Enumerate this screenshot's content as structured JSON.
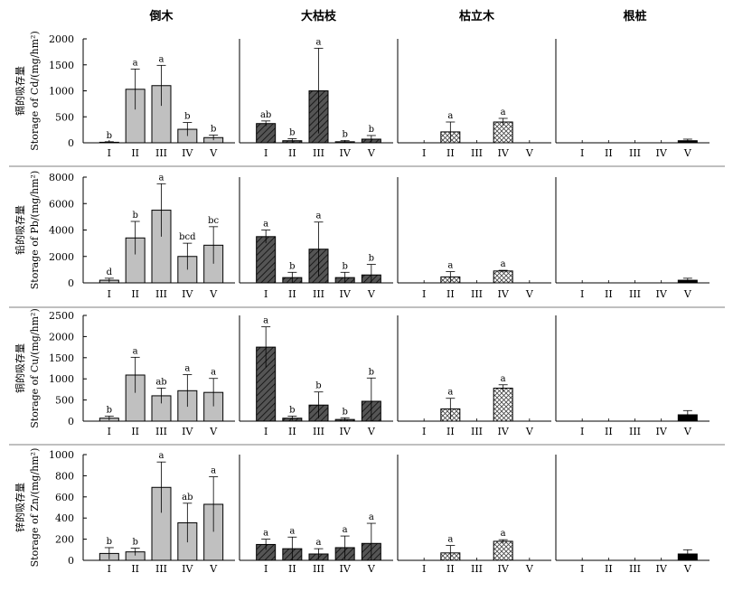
{
  "chart_data": {
    "type": "bar",
    "groups": [
      "倒木",
      "大枯枝",
      "枯立木",
      "根桩"
    ],
    "categories": [
      "I",
      "II",
      "III",
      "IV",
      "V"
    ],
    "panels": [
      {
        "ylabel_cn": "镉的吸存量",
        "ylabel_en": "Storage of Cd/(mg/hm²)",
        "ylim": [
          0,
          2000
        ],
        "yticks": [
          "0",
          "500",
          "1000",
          "1500",
          "2000"
        ],
        "series": [
          {
            "group": "倒木",
            "values": [
              10,
              1030,
              1100,
              260,
              100
            ],
            "errors": [
              10,
              390,
              390,
              130,
              50
            ],
            "labels": [
              "b",
              "a",
              "a",
              "b",
              "b"
            ]
          },
          {
            "group": "大枯枝",
            "values": [
              370,
              40,
              1000,
              20,
              70
            ],
            "errors": [
              50,
              40,
              820,
              20,
              70
            ],
            "labels": [
              "ab",
              "b",
              "a",
              "b",
              "b"
            ]
          },
          {
            "group": "枯立木",
            "values": [
              null,
              210,
              null,
              400,
              null
            ],
            "errors": [
              null,
              190,
              null,
              70,
              null
            ],
            "labels": [
              "",
              "a",
              "",
              "a",
              ""
            ]
          },
          {
            "group": "根桩",
            "values": [
              null,
              null,
              null,
              null,
              40
            ],
            "errors": [
              null,
              null,
              null,
              null,
              30
            ],
            "labels": [
              "",
              "",
              "",
              "",
              ""
            ]
          }
        ]
      },
      {
        "ylabel_cn": "铅的吸存量",
        "ylabel_en": "Storage of Pb/(mg/hm²)",
        "ylim": [
          0,
          8000
        ],
        "yticks": [
          "0",
          "2000",
          "4000",
          "6000",
          "8000"
        ],
        "series": [
          {
            "group": "倒木",
            "values": [
              200,
              3400,
              5500,
              2000,
              2850
            ],
            "errors": [
              150,
              1250,
              2000,
              1000,
              1400
            ],
            "labels": [
              "d",
              "b",
              "a",
              "bcd",
              "bc"
            ]
          },
          {
            "group": "大枯枝",
            "values": [
              3500,
              400,
              2550,
              400,
              600
            ],
            "errors": [
              500,
              400,
              2050,
              400,
              800
            ],
            "labels": [
              "a",
              "b",
              "a",
              "b",
              "b"
            ]
          },
          {
            "group": "枯立木",
            "values": [
              null,
              450,
              null,
              900,
              null
            ],
            "errors": [
              null,
              400,
              null,
              50,
              null
            ],
            "labels": [
              "",
              "a",
              "",
              "a",
              ""
            ]
          },
          {
            "group": "根桩",
            "values": [
              null,
              null,
              null,
              null,
              200
            ],
            "errors": [
              null,
              null,
              null,
              null,
              150
            ],
            "labels": [
              "",
              "",
              "",
              "",
              ""
            ]
          }
        ]
      },
      {
        "ylabel_cn": "铜的吸存量",
        "ylabel_en": "Storage of Cu/(mg/hm²)",
        "ylim": [
          0,
          2500
        ],
        "yticks": [
          "0",
          "500",
          "1000",
          "1500",
          "2000",
          "2500"
        ],
        "series": [
          {
            "group": "倒木",
            "values": [
              70,
              1090,
              600,
              720,
              680
            ],
            "errors": [
              50,
              420,
              180,
              380,
              330
            ],
            "labels": [
              "b",
              "a",
              "ab",
              "a",
              "a"
            ]
          },
          {
            "group": "大枯枝",
            "values": [
              1750,
              70,
              380,
              40,
              470
            ],
            "errors": [
              480,
              50,
              310,
              40,
              550
            ],
            "labels": [
              "a",
              "b",
              "b",
              "b",
              "b"
            ]
          },
          {
            "group": "枯立木",
            "values": [
              null,
              290,
              null,
              780,
              null
            ],
            "errors": [
              null,
              250,
              null,
              80,
              null
            ],
            "labels": [
              "",
              "a",
              "",
              "a",
              ""
            ]
          },
          {
            "group": "根桩",
            "values": [
              null,
              null,
              null,
              null,
              150
            ],
            "errors": [
              null,
              null,
              null,
              null,
              100
            ],
            "labels": [
              "",
              "",
              "",
              "",
              ""
            ]
          }
        ]
      },
      {
        "ylabel_cn": "锌的吸存量",
        "ylabel_en": "Storage of Zn/(mg/hm²)",
        "ylim": [
          0,
          1000
        ],
        "yticks": [
          "0",
          "200",
          "400",
          "600",
          "800",
          "1000"
        ],
        "series": [
          {
            "group": "倒木",
            "values": [
              65,
              80,
              690,
              355,
              530
            ],
            "errors": [
              55,
              35,
              240,
              185,
              260
            ],
            "labels": [
              "b",
              "b",
              "a",
              "ab",
              "a"
            ]
          },
          {
            "group": "大枯枝",
            "values": [
              150,
              110,
              60,
              120,
              160
            ],
            "errors": [
              50,
              110,
              50,
              110,
              190
            ],
            "labels": [
              "a",
              "a",
              "a",
              "a",
              "a"
            ]
          },
          {
            "group": "枯立木",
            "values": [
              null,
              70,
              null,
              180,
              null
            ],
            "errors": [
              null,
              70,
              null,
              15,
              null
            ],
            "labels": [
              "",
              "a",
              "",
              "a",
              ""
            ]
          },
          {
            "group": "根桩",
            "values": [
              null,
              null,
              null,
              null,
              60
            ],
            "errors": [
              null,
              null,
              null,
              null,
              40
            ],
            "labels": [
              "",
              "",
              "",
              "",
              ""
            ]
          }
        ]
      }
    ],
    "colors": {
      "倒木": "#c0c0c0",
      "大枯枝": "#555555",
      "枯立木": "#ffffff",
      "根桩": "#000000"
    },
    "patterns": {
      "倒木": "solid",
      "大枯枝": "diagonal-hatch",
      "枯立木": "crosshatch",
      "根桩": "solid"
    }
  }
}
